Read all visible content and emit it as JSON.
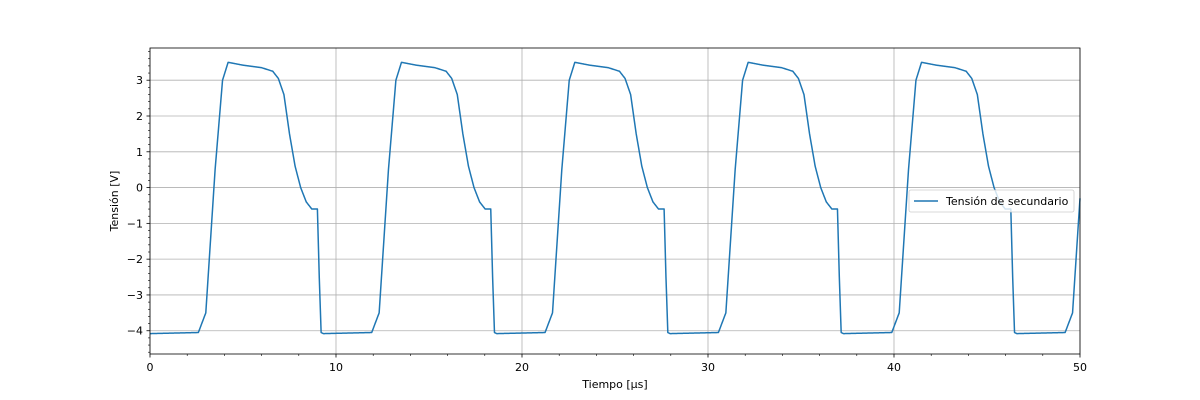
{
  "chart_data": {
    "type": "line",
    "xlabel": "Tiempo [μs]",
    "ylabel": "Tensión [V]",
    "xlim": [
      0,
      50
    ],
    "ylim": [
      -4.65,
      3.9
    ],
    "xticks": [
      0,
      10,
      20,
      30,
      40,
      50
    ],
    "xtick_labels": [
      "0",
      "10",
      "20",
      "30",
      "40",
      "50"
    ],
    "yticks": [
      -4,
      -3,
      -2,
      -1,
      0,
      1,
      2,
      3
    ],
    "ytick_labels": [
      "−4",
      "−3",
      "−2",
      "−1",
      "0",
      "1",
      "2",
      "3"
    ],
    "grid": true,
    "legend_position": "right",
    "series": [
      {
        "name": "Tensión de secundario",
        "color": "#1f77b4",
        "period_us": 9.32,
        "x": [
          0,
          2.6,
          3.0,
          3.5,
          3.9,
          4.2,
          4.5,
          5.0,
          6.0,
          6.6,
          6.9,
          7.2,
          7.5,
          7.8,
          8.1,
          8.4,
          8.7,
          9.0,
          9.1,
          9.2,
          9.32
        ],
        "y": [
          -4.08,
          -4.05,
          -3.5,
          0.5,
          3.0,
          3.5,
          3.47,
          3.42,
          3.35,
          3.25,
          3.05,
          2.6,
          1.5,
          0.6,
          0.0,
          -0.4,
          -0.6,
          -0.6,
          -2.5,
          -4.05,
          -4.08
        ]
      }
    ]
  }
}
